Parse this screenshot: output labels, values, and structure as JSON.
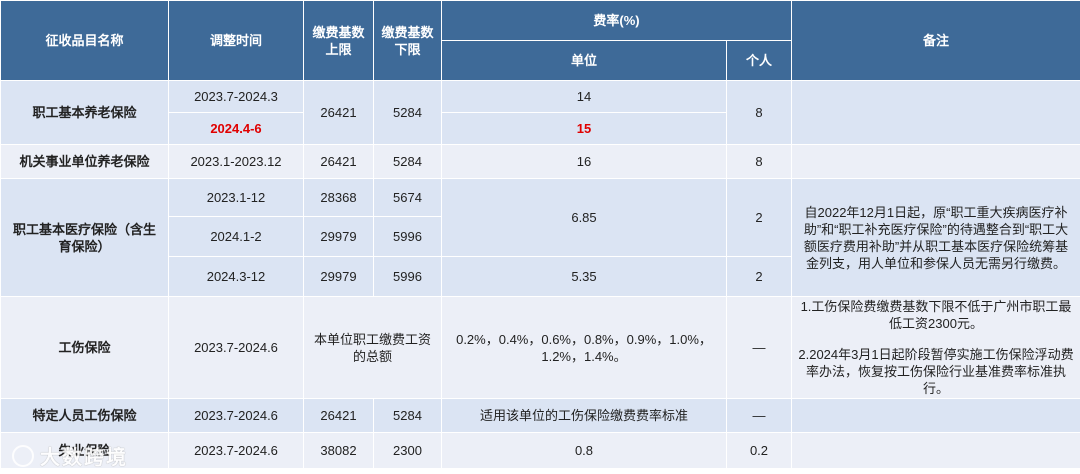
{
  "header": {
    "col_name": "征收品目名称",
    "col_period": "调整时间",
    "col_upper": "缴费基数上限",
    "col_lower": "缴费基数下限",
    "col_rate": "费率(%)",
    "col_employer": "单位",
    "col_individual": "个人",
    "col_remark": "备注"
  },
  "rows": {
    "pension": {
      "name": "职工基本养老保险",
      "period_1": "2023.7-2024.3",
      "period_2": "2024.4-6",
      "upper": "26421",
      "lower": "5284",
      "employer_1": "14",
      "employer_2": "15",
      "individual": "8"
    },
    "gov_pension": {
      "name": "机关事业单位养老保险",
      "period": "2023.1-2023.12",
      "upper": "26421",
      "lower": "5284",
      "employer": "16",
      "individual": "8"
    },
    "medical": {
      "name": "职工基本医疗保险（含生育保险）",
      "period_1": "2023.1-12",
      "upper_1": "28368",
      "lower_1": "5674",
      "period_2": "2024.1-2",
      "upper_2": "29979",
      "lower_2": "5996",
      "period_3": "2024.3-12",
      "upper_3": "29979",
      "lower_3": "5996",
      "employer_1": "6.85",
      "individual_1": "2",
      "employer_2": "5.35",
      "individual_2": "2",
      "remark": "自2022年12月1日起，原“职工重大疾病医疗补助”和“职工补充医疗保险”的待遇整合到“职工大额医疗费用补助”并从职工基本医疗保险统筹基金列支，用人单位和参保人员无需另行缴费。"
    },
    "injury": {
      "name": "工伤保险",
      "period": "2023.7-2024.6",
      "base": "本单位职工缴费工资的总额",
      "employer": "0.2%，0.4%，0.6%，0.8%，0.9%，1.0%，1.2%，1.4%。",
      "individual": "—",
      "remark_1": "1.工伤保险费缴费基数下限不低于广州市职工最低工资2300元。",
      "remark_2": "2.2024年3月1日起阶段暂停实施工伤保险浮动费率办法，恢复按工伤保险行业基准费率标准执行。"
    },
    "special_injury": {
      "name": "特定人员工伤保险",
      "period": "2023.7-2024.6",
      "upper": "26421",
      "lower": "5284",
      "employer": "适用该单位的工伤保险缴费费率标准",
      "individual": "—"
    },
    "unemployment": {
      "name": "失业保险",
      "period": "2023.7-2024.6",
      "upper": "38082",
      "lower": "2300",
      "employer": "0.8",
      "individual": "0.2"
    }
  },
  "watermark": {
    "text": "大数跨境",
    "icon": "logo-circle-icon"
  },
  "colors": {
    "header_bg": "#3e6a98",
    "row_bg_dark": "#dbe4f3",
    "row_bg_light": "#eceff7",
    "highlight": "#e00000"
  }
}
